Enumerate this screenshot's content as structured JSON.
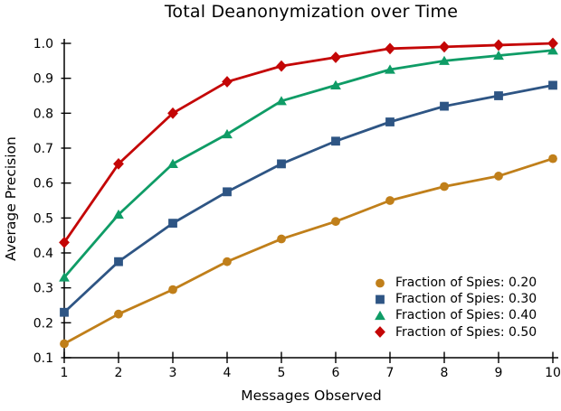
{
  "chart_data": {
    "type": "line",
    "title": "Total Deanonymization over Time",
    "xlabel": "Messages Observed",
    "ylabel": "Average Precision",
    "x": [
      1,
      2,
      3,
      4,
      5,
      6,
      7,
      8,
      9,
      10
    ],
    "x_tick_labels": [
      "1",
      "2",
      "3",
      "4",
      "5",
      "6",
      "7",
      "8",
      "9",
      "10"
    ],
    "y_tick_labels": [
      "0.1",
      "0.2",
      "0.3",
      "0.4",
      "0.5",
      "0.6",
      "0.7",
      "0.8",
      "0.9",
      "1.0"
    ],
    "xlim": [
      1,
      10.1
    ],
    "ylim": [
      0.1,
      1.0
    ],
    "grid": false,
    "legend_position": "lower-right-inside",
    "axis_color": "#000000",
    "series": [
      {
        "name": "Fraction of Spies: 0.20",
        "marker": "circle",
        "color": "#C07F1A",
        "values": [
          0.14,
          0.225,
          0.295,
          0.375,
          0.44,
          0.49,
          0.55,
          0.59,
          0.62,
          0.67
        ]
      },
      {
        "name": "Fraction of Spies: 0.30",
        "marker": "square",
        "color": "#2E5584",
        "values": [
          0.23,
          0.375,
          0.485,
          0.575,
          0.655,
          0.72,
          0.775,
          0.82,
          0.85,
          0.88
        ]
      },
      {
        "name": "Fraction of Spies: 0.40",
        "marker": "triangle",
        "color": "#0F9C66",
        "values": [
          0.33,
          0.51,
          0.655,
          0.74,
          0.835,
          0.88,
          0.925,
          0.95,
          0.965,
          0.98
        ]
      },
      {
        "name": "Fraction of Spies: 0.50",
        "marker": "diamond",
        "color": "#C40606",
        "values": [
          0.43,
          0.655,
          0.8,
          0.89,
          0.935,
          0.96,
          0.985,
          0.99,
          0.995,
          1.0
        ]
      }
    ]
  }
}
